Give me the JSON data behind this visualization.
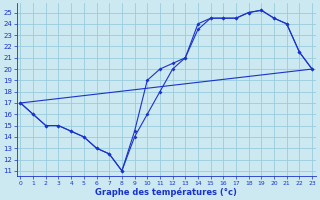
{
  "xlabel": "Graphe des températures (°c)",
  "bg_color": "#cce8f0",
  "grid_color": "#99ccdd",
  "line_color": "#1a33cc",
  "x_ticks": [
    0,
    1,
    2,
    3,
    4,
    5,
    6,
    7,
    8,
    9,
    10,
    11,
    12,
    13,
    14,
    15,
    16,
    17,
    18,
    19,
    20,
    21,
    22,
    23
  ],
  "y_ticks": [
    11,
    12,
    13,
    14,
    15,
    16,
    17,
    18,
    19,
    20,
    21,
    22,
    23,
    24,
    25
  ],
  "ylim": [
    10.5,
    25.8
  ],
  "xlim": [
    -0.3,
    23.3
  ],
  "line1_x": [
    0,
    1,
    2,
    3,
    4,
    5,
    6,
    7,
    8,
    9,
    10,
    11,
    12,
    13,
    14,
    15,
    16,
    17,
    18,
    19,
    20,
    21,
    22,
    23
  ],
  "line1_y": [
    17.0,
    16.0,
    15.0,
    15.0,
    14.5,
    14.0,
    13.0,
    12.5,
    11.0,
    14.5,
    19.0,
    20.0,
    20.5,
    21.0,
    23.5,
    24.5,
    24.5,
    24.5,
    25.0,
    25.2,
    24.5,
    24.0,
    21.5,
    20.0
  ],
  "line2_x": [
    0,
    1,
    2,
    3,
    4,
    5,
    6,
    7,
    8,
    9,
    10,
    11,
    12,
    13,
    14,
    15,
    16,
    17,
    18,
    19,
    20,
    21,
    22,
    23
  ],
  "line2_y": [
    17.0,
    16.0,
    15.0,
    15.0,
    14.5,
    14.0,
    13.0,
    12.5,
    11.0,
    14.0,
    16.0,
    18.0,
    20.0,
    21.0,
    24.0,
    24.5,
    24.5,
    24.5,
    25.0,
    25.2,
    24.5,
    24.0,
    21.5,
    20.0
  ],
  "line3_x": [
    0,
    23
  ],
  "line3_y": [
    17.0,
    20.0
  ]
}
